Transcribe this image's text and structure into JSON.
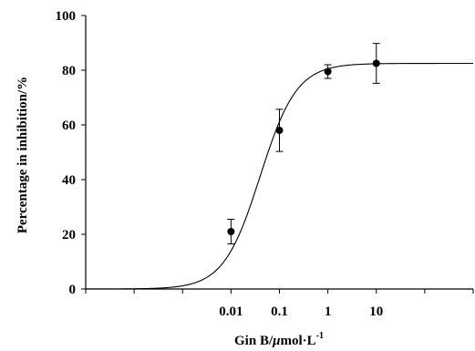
{
  "chart_data": {
    "type": "scatter",
    "xlabel_main": "Gin B/",
    "xlabel_mu": "μ",
    "xlabel_unit": "mol·L",
    "xlabel_sup": "-1",
    "ylabel": "Percentage in inhibition/%",
    "x_scale": "log",
    "xlim": [
      1e-05,
      1000
    ],
    "ylim": [
      0,
      100
    ],
    "x_ticks": [
      1e-05,
      0.0001,
      0.001,
      0.01,
      0.1,
      1,
      10,
      100,
      1000
    ],
    "x_tick_labels": [
      {
        "value": 0.01,
        "label": "0.01"
      },
      {
        "value": 0.1,
        "label": "0.1"
      },
      {
        "value": 1,
        "label": "1"
      },
      {
        "value": 10,
        "label": "10"
      }
    ],
    "y_ticks": [
      {
        "value": 0,
        "label": "0"
      },
      {
        "value": 20,
        "label": "20"
      },
      {
        "value": 40,
        "label": "40"
      },
      {
        "value": 60,
        "label": "60"
      },
      {
        "value": 80,
        "label": "80"
      },
      {
        "value": 100,
        "label": "100"
      }
    ],
    "points": [
      {
        "x": 0.01,
        "y": 21,
        "err": 4.5
      },
      {
        "x": 0.1,
        "y": 58,
        "err": 7.7
      },
      {
        "x": 1,
        "y": 79.5,
        "err": 2.5
      },
      {
        "x": 10,
        "y": 82.5,
        "err": 7.3
      }
    ],
    "fit": {
      "model": "sigmoid",
      "bottom": 0,
      "top": 82.5,
      "ec50": 0.04,
      "hill": 1.15
    },
    "grid": false,
    "legend": "none"
  }
}
